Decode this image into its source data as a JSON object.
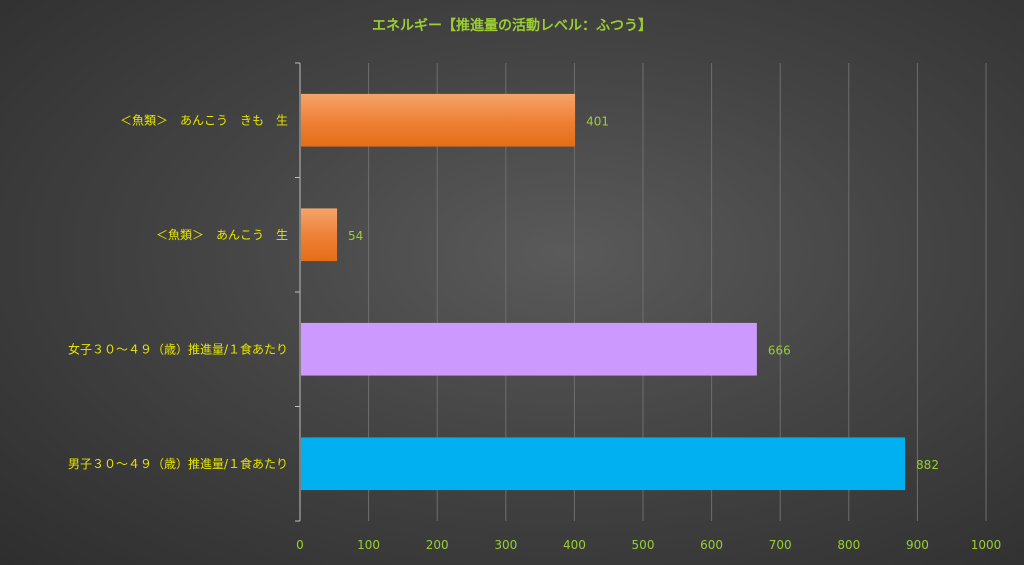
{
  "chart_data": {
    "type": "bar",
    "orientation": "horizontal",
    "title": "エネルギー【推進量の活動レベル：ふつう】",
    "categories": [
      "＜魚類＞　あんこう　きも　生",
      "＜魚類＞　あんこう　生",
      "女子３０～４９（歳）推進量/１食あたり",
      "男子３０～４９（歳）推進量/１食あたり"
    ],
    "values": [
      401,
      54,
      666,
      882
    ],
    "colors": [
      "#ed7d31",
      "#ed7d31",
      "#cc99ff",
      "#00b0f0"
    ],
    "xlim": [
      0,
      1000
    ],
    "xticks": [
      0,
      100,
      200,
      300,
      400,
      500,
      600,
      700,
      800,
      900,
      1000
    ],
    "grid": true,
    "legend": "none"
  }
}
